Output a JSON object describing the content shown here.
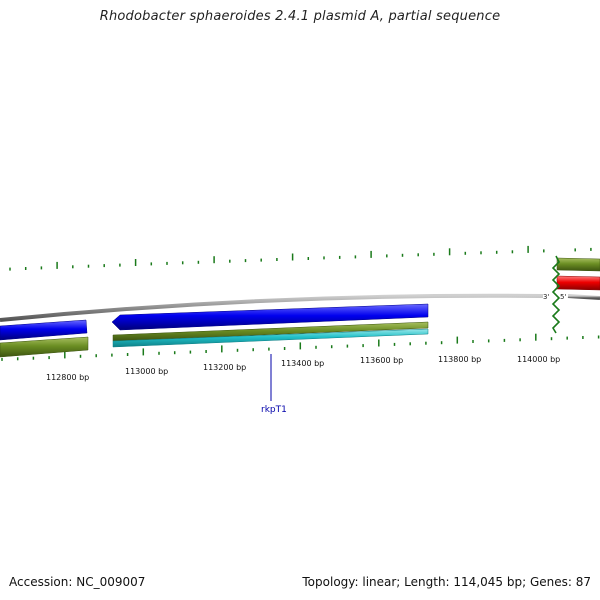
{
  "title": "Rhodobacter sphaeroides 2.4.1 plasmid A, partial sequence",
  "footer": {
    "accession": "Accession: NC_009007",
    "summary": "Topology: linear; Length: 114,045 bp; Genes: 87"
  },
  "sequence_end_labels": {
    "three_prime": "3'",
    "five_prime": "5'"
  },
  "scale_labels": [
    {
      "bp": 112800,
      "text": "112800 bp"
    },
    {
      "bp": 113000,
      "text": "113000 bp"
    },
    {
      "bp": 113200,
      "text": "113200 bp"
    },
    {
      "bp": 113400,
      "text": "113400 bp"
    },
    {
      "bp": 113600,
      "text": "113600 bp"
    },
    {
      "bp": 113800,
      "text": "113800 bp"
    },
    {
      "bp": 114000,
      "text": "114000 bp"
    }
  ],
  "gene_labels": [
    {
      "name": "rkpT1",
      "color": "#0000aa"
    }
  ],
  "colors": {
    "backbone": "#8c8c8c",
    "tick": "#1a7a1a",
    "gene_blue": "#0000ee",
    "gene_olive": "#6b8e23",
    "gene_cyan": "#20c0c8",
    "gene_red": "#ee0000",
    "end_break": "#1a7a1a"
  }
}
